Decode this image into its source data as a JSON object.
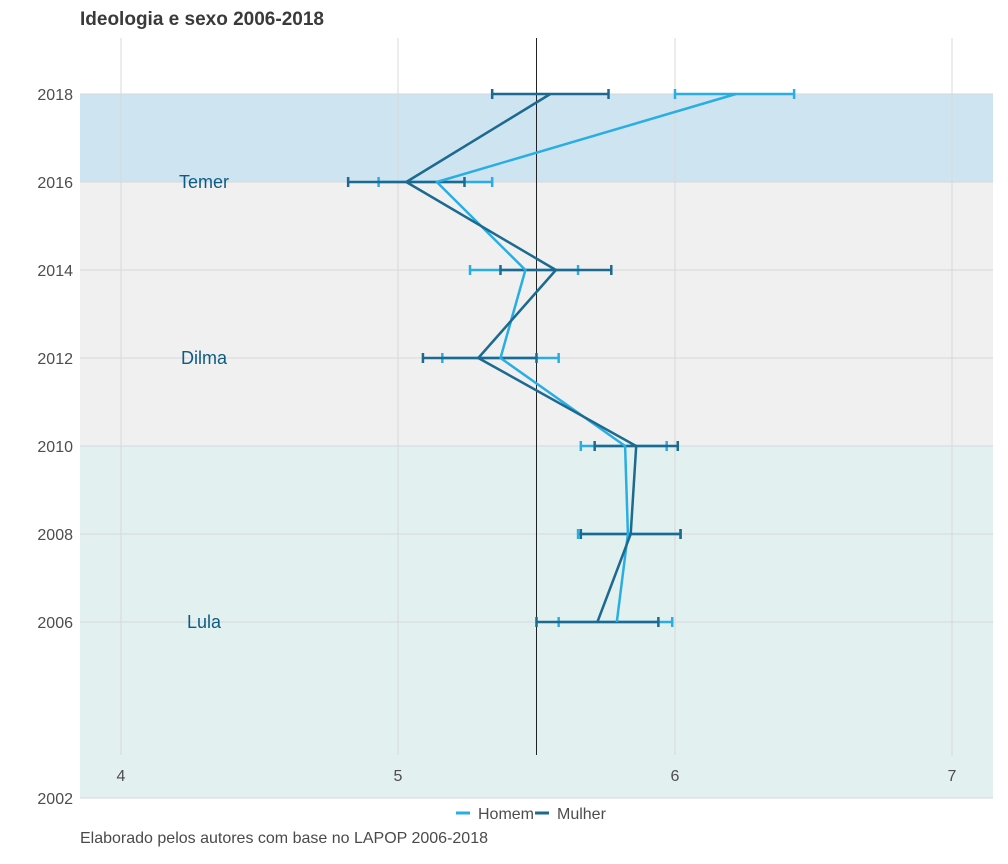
{
  "chart_data": {
    "type": "line",
    "title": "Ideologia e sexo 2006-2018",
    "xlabel": "",
    "ylabel": "",
    "xlim": [
      3.85,
      7.15
    ],
    "ylim": [
      2001,
      2019
    ],
    "x_ticks": [
      "4",
      "5",
      "6",
      "7"
    ],
    "x_tick_values": [
      4,
      5,
      6,
      7
    ],
    "y_ticks": [
      "2002",
      "2006",
      "2008",
      "2010",
      "2012",
      "2014",
      "2016",
      "2018"
    ],
    "y_tick_values": [
      2002,
      2006,
      2008,
      2010,
      2012,
      2014,
      2016,
      2018
    ],
    "reference_line_x": 5.5,
    "grid": true,
    "legend_position": "bottom",
    "eras": [
      {
        "label": "Lula",
        "y_from": 2002,
        "y_to": 2010,
        "color": "#e2f0f0",
        "label_year": 2006
      },
      {
        "label": "Dilma",
        "y_from": 2010,
        "y_to": 2016,
        "color": "#f0f0f0",
        "label_year": 2012
      },
      {
        "label": "Temer",
        "y_from": 2016,
        "y_to": 2018,
        "color": "#cfe4f1",
        "label_year": 2016
      }
    ],
    "series": [
      {
        "name": "Homem",
        "color": "#29aee3",
        "points": [
          {
            "year": 2006,
            "value": 5.79,
            "low": 5.58,
            "high": 5.99
          },
          {
            "year": 2008,
            "value": 5.83,
            "low": 5.65,
            "high": 6.02
          },
          {
            "year": 2010,
            "value": 5.82,
            "low": 5.66,
            "high": 5.97
          },
          {
            "year": 2012,
            "value": 5.37,
            "low": 5.16,
            "high": 5.58
          },
          {
            "year": 2014,
            "value": 5.46,
            "low": 5.26,
            "high": 5.65
          },
          {
            "year": 2016,
            "value": 5.14,
            "low": 4.93,
            "high": 5.34
          },
          {
            "year": 2018,
            "value": 6.22,
            "low": 6.0,
            "high": 6.43
          }
        ]
      },
      {
        "name": "Mulher",
        "color": "#1c6a8f",
        "points": [
          {
            "year": 2006,
            "value": 5.72,
            "low": 5.5,
            "high": 5.94
          },
          {
            "year": 2008,
            "value": 5.84,
            "low": 5.66,
            "high": 6.02
          },
          {
            "year": 2010,
            "value": 5.86,
            "low": 5.71,
            "high": 6.01
          },
          {
            "year": 2012,
            "value": 5.29,
            "low": 5.09,
            "high": 5.5
          },
          {
            "year": 2014,
            "value": 5.57,
            "low": 5.37,
            "high": 5.77
          },
          {
            "year": 2016,
            "value": 5.03,
            "low": 4.82,
            "high": 5.24
          },
          {
            "year": 2018,
            "value": 5.55,
            "low": 5.34,
            "high": 5.76
          }
        ]
      }
    ]
  },
  "caption": "Elaborado pelos autores com base no LAPOP 2006-2018"
}
